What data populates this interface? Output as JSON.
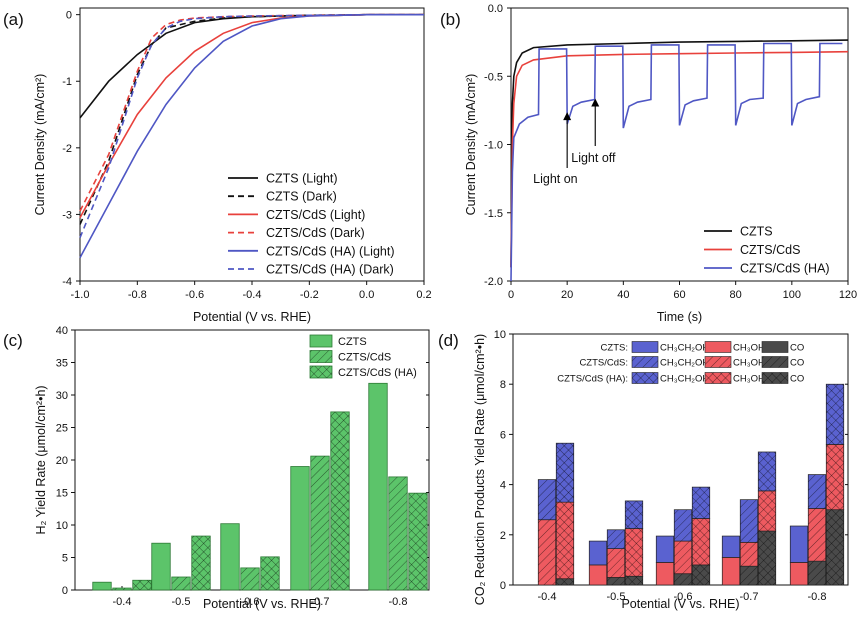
{
  "figure": {
    "colors": {
      "black": "#111111",
      "red": "#e8413c",
      "blue": "#4f57c4",
      "green": "#5cc46a",
      "green_edge": "#2d7a35",
      "blue_fill": "#5a62d0",
      "red_fill": "#ee5a60",
      "gray_fill": "#4a4a4a"
    }
  },
  "chart_data": [
    {
      "panel": "(a)",
      "type": "line",
      "xlabel": "Potential (V vs. RHE)",
      "ylabel": "Current Density (mA/cm²)",
      "xlim": [
        -1.0,
        0.2
      ],
      "ylim": [
        -4,
        0.1
      ],
      "xticks": [
        "-1.0",
        "-0.8",
        "-0.6",
        "-0.4",
        "-0.2",
        "0.0",
        "0.2"
      ],
      "yticks": [
        "0",
        "-1",
        "-2",
        "-3",
        "-4"
      ],
      "legend_position": "bottom-right",
      "series": [
        {
          "name": "CZTS (Light)",
          "color": "#111111",
          "dash": false,
          "x": [
            -1.0,
            -0.9,
            -0.8,
            -0.7,
            -0.6,
            -0.5,
            -0.4,
            -0.3,
            -0.2,
            -0.1,
            0.0,
            0.1,
            0.2
          ],
          "y": [
            -1.55,
            -1.0,
            -0.6,
            -0.28,
            -0.12,
            -0.06,
            -0.03,
            -0.02,
            -0.01,
            -0.01,
            0,
            0,
            0
          ]
        },
        {
          "name": "CZTS (Dark)",
          "color": "#111111",
          "dash": true,
          "x": [
            -1.0,
            -0.9,
            -0.8,
            -0.75,
            -0.7,
            -0.6,
            -0.5,
            -0.4,
            -0.2,
            0.0,
            0.2
          ],
          "y": [
            -3.15,
            -2.2,
            -0.9,
            -0.45,
            -0.2,
            -0.1,
            -0.05,
            -0.03,
            -0.01,
            0,
            0
          ]
        },
        {
          "name": "CZTS/CdS  (Light)",
          "color": "#e8413c",
          "dash": false,
          "x": [
            -1.0,
            -0.9,
            -0.8,
            -0.7,
            -0.6,
            -0.5,
            -0.4,
            -0.3,
            -0.2,
            -0.1,
            0.0,
            0.1,
            0.2
          ],
          "y": [
            -3.05,
            -2.25,
            -1.5,
            -0.95,
            -0.55,
            -0.28,
            -0.12,
            -0.05,
            -0.02,
            -0.01,
            0,
            0,
            0
          ]
        },
        {
          "name": "CZTS/CdS  (Dark)",
          "color": "#e8413c",
          "dash": true,
          "x": [
            -1.0,
            -0.9,
            -0.8,
            -0.75,
            -0.7,
            -0.65,
            -0.6,
            -0.5,
            -0.4,
            -0.2,
            0.0,
            0.2
          ],
          "y": [
            -2.95,
            -2.1,
            -0.85,
            -0.35,
            -0.15,
            -0.08,
            -0.05,
            -0.03,
            -0.02,
            -0.01,
            0,
            0
          ]
        },
        {
          "name": "CZTS/CdS (HA) (Light)",
          "color": "#4f57c4",
          "dash": false,
          "x": [
            -1.0,
            -0.9,
            -0.8,
            -0.7,
            -0.6,
            -0.5,
            -0.4,
            -0.3,
            -0.2,
            -0.1,
            0.0,
            0.1,
            0.2
          ],
          "y": [
            -3.65,
            -2.85,
            -2.05,
            -1.35,
            -0.8,
            -0.4,
            -0.17,
            -0.06,
            -0.02,
            -0.01,
            0,
            0,
            0
          ]
        },
        {
          "name": "CZTS/CdS (HA) (Dark)",
          "color": "#4f57c4",
          "dash": true,
          "x": [
            -1.0,
            -0.9,
            -0.8,
            -0.75,
            -0.7,
            -0.65,
            -0.6,
            -0.5,
            -0.4,
            -0.2,
            0.0,
            0.2
          ],
          "y": [
            -3.35,
            -2.3,
            -0.95,
            -0.45,
            -0.2,
            -0.1,
            -0.06,
            -0.03,
            -0.02,
            -0.01,
            0,
            0
          ]
        }
      ]
    },
    {
      "panel": "(b)",
      "type": "line",
      "xlabel": "Time (s)",
      "ylabel": "Current Density (mA/cm²)",
      "xlim": [
        0,
        120
      ],
      "ylim": [
        -2.0,
        0.0
      ],
      "xticks": [
        "0",
        "20",
        "40",
        "60",
        "80",
        "100",
        "120"
      ],
      "yticks": [
        "0.0",
        "-0.5",
        "-1.0",
        "-1.5",
        "-2.0"
      ],
      "legend_position": "bottom-right",
      "annotations": [
        {
          "text": "Light on",
          "x": 20,
          "y": -0.78
        },
        {
          "text": "Light off",
          "x": 30,
          "y": -0.65
        }
      ],
      "series": [
        {
          "name": "CZTS",
          "color": "#111111",
          "x": [
            0,
            0.5,
            1,
            2,
            4,
            8,
            20,
            40,
            60,
            80,
            100,
            120
          ],
          "y": [
            -1.9,
            -0.7,
            -0.5,
            -0.4,
            -0.33,
            -0.29,
            -0.27,
            -0.26,
            -0.25,
            -0.245,
            -0.24,
            -0.235
          ]
        },
        {
          "name": "CZTS/CdS",
          "color": "#e8413c",
          "x": [
            0,
            0.5,
            1,
            2,
            4,
            8,
            20,
            40,
            60,
            80,
            100,
            120
          ],
          "y": [
            -1.9,
            -1.0,
            -0.7,
            -0.5,
            -0.42,
            -0.38,
            -0.35,
            -0.34,
            -0.335,
            -0.33,
            -0.325,
            -0.32
          ]
        },
        {
          "name": "CZTS/CdS (HA)",
          "color": "#4f57c4",
          "x": [
            0,
            0.5,
            1,
            3,
            6,
            9.8,
            10,
            19.8,
            20,
            22,
            25,
            29.8,
            30,
            39.8,
            40,
            42,
            45,
            49.8,
            50,
            59.8,
            60,
            62,
            65,
            69.8,
            70,
            79.8,
            80,
            82,
            85,
            89.8,
            90,
            99.8,
            100,
            102,
            105,
            109.8,
            110,
            118
          ],
          "y": [
            -2.0,
            -1.2,
            -0.95,
            -0.85,
            -0.8,
            -0.78,
            -0.3,
            -0.3,
            -0.85,
            -0.72,
            -0.69,
            -0.67,
            -0.28,
            -0.28,
            -0.88,
            -0.72,
            -0.69,
            -0.67,
            -0.27,
            -0.27,
            -0.86,
            -0.71,
            -0.68,
            -0.66,
            -0.27,
            -0.27,
            -0.86,
            -0.7,
            -0.67,
            -0.66,
            -0.26,
            -0.26,
            -0.86,
            -0.7,
            -0.67,
            -0.65,
            -0.26,
            -0.26
          ]
        }
      ]
    },
    {
      "panel": "(c)",
      "type": "bar",
      "xlabel": "Potential (V vs. RHE)",
      "ylabel": "H₂ Yield Rate (μmol/cm²•h)",
      "ylim": [
        0,
        40
      ],
      "yticks": [
        "0",
        "5",
        "10",
        "15",
        "20",
        "25",
        "30",
        "35",
        "40"
      ],
      "categories": [
        "-0.4",
        "-0.5",
        "-0.6",
        "-0.7",
        "-0.8"
      ],
      "legend_position": "top-right",
      "series": [
        {
          "name": "CZTS",
          "pattern": "solid",
          "values": [
            1.2,
            7.2,
            10.2,
            19.0,
            31.8
          ]
        },
        {
          "name": "CZTS/CdS",
          "pattern": "diagonal",
          "values": [
            0.3,
            2.0,
            3.4,
            20.6,
            17.4
          ]
        },
        {
          "name": "CZTS/CdS (HA)",
          "pattern": "crosshatch",
          "values": [
            1.5,
            8.3,
            5.1,
            27.4,
            14.9
          ]
        }
      ]
    },
    {
      "panel": "(d)",
      "type": "bar",
      "stacked": true,
      "xlabel": "Potential (V vs. RHE)",
      "ylabel": "CO₂ Reduction Products Yield Rate (μmol/cm²•h)",
      "ylim": [
        0,
        10
      ],
      "yticks": [
        "0",
        "2",
        "4",
        "6",
        "8",
        "10"
      ],
      "categories": [
        "-0.4",
        "-0.5",
        "-0.6",
        "-0.7",
        "-0.8"
      ],
      "legend_position": "top-right",
      "legend_rows": [
        "CZTS:",
        "CZTS/CdS:",
        "CZTS/CdS (HA):"
      ],
      "legend_products": [
        "CH₃CH₂OH",
        "CH₃OH",
        "CO"
      ],
      "samples": [
        {
          "name": "CZTS",
          "pattern": "solid",
          "CO": [
            0.0,
            0.0,
            0.0,
            0.0,
            0.0
          ],
          "CH3OH": [
            0.0,
            0.8,
            0.9,
            1.1,
            0.9
          ],
          "CH3CH2OH": [
            0.0,
            0.95,
            1.05,
            0.85,
            1.45
          ]
        },
        {
          "name": "CZTS/CdS",
          "pattern": "diagonal",
          "CO": [
            0.0,
            0.3,
            0.45,
            0.75,
            0.95
          ],
          "CH3OH": [
            2.6,
            1.15,
            1.3,
            0.95,
            2.1
          ],
          "CH3CH2OH": [
            1.6,
            0.75,
            1.25,
            1.7,
            1.35
          ]
        },
        {
          "name": "CZTS/CdS (HA)",
          "pattern": "crosshatch",
          "CO": [
            0.25,
            0.35,
            0.8,
            2.15,
            3.0
          ],
          "CH3OH": [
            3.05,
            1.9,
            1.85,
            1.6,
            2.6
          ],
          "CH3CH2OH": [
            2.35,
            1.1,
            1.25,
            1.55,
            2.4
          ]
        }
      ]
    }
  ]
}
